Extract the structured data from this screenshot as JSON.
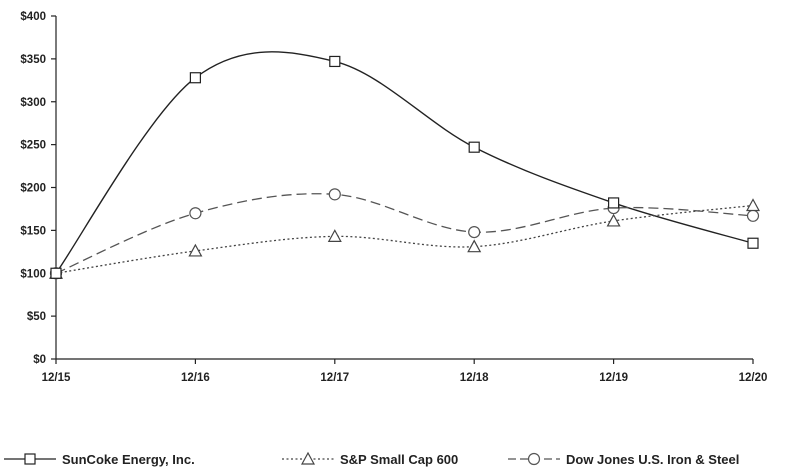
{
  "chart_data": {
    "type": "line",
    "title": "",
    "xlabel": "",
    "ylabel": "",
    "categories": [
      "12/15",
      "12/16",
      "12/17",
      "12/18",
      "12/19",
      "12/20"
    ],
    "ylim": [
      0,
      400
    ],
    "yticks": [
      0,
      50,
      100,
      150,
      200,
      250,
      300,
      350,
      400
    ],
    "ytick_labels": [
      "$0",
      "$50",
      "$100",
      "$150",
      "$200",
      "$250",
      "$300",
      "$350",
      "$400"
    ],
    "grid": false,
    "legend_position": "bottom",
    "series": [
      {
        "name": "SunCoke Energy, Inc.",
        "values": [
          100,
          328,
          347,
          247,
          182,
          135
        ],
        "marker": "square",
        "dash": "solid",
        "color": "#222222"
      },
      {
        "name": "S&P Small Cap 600",
        "values": [
          100,
          126,
          143,
          131,
          161,
          179
        ],
        "marker": "triangle",
        "dash": "dotted",
        "color": "#444444"
      },
      {
        "name": "Dow Jones U.S. Iron & Steel",
        "values": [
          100,
          170,
          192,
          148,
          176,
          167
        ],
        "marker": "circle",
        "dash": "dashed",
        "color": "#555555"
      }
    ]
  }
}
